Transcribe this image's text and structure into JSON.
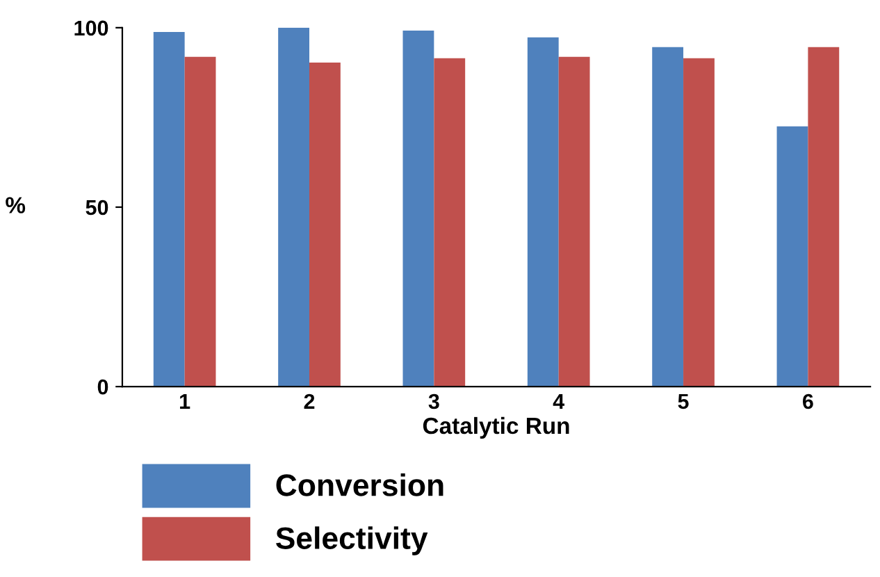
{
  "chart_data": {
    "type": "bar",
    "xlabel": "Catalytic Run",
    "ylabel": "%",
    "categories": [
      "1",
      "2",
      "3",
      "4",
      "5",
      "6"
    ],
    "series": [
      {
        "name": "Conversion",
        "color": "#4f81bd",
        "values": [
          98.8,
          100,
          99.2,
          97.3,
          94.6,
          72.5
        ]
      },
      {
        "name": "Selectivity",
        "color": "#c0504d",
        "values": [
          91.9,
          90.3,
          91.5,
          91.9,
          91.5,
          94.6
        ]
      }
    ],
    "ylim": [
      0,
      100
    ],
    "yticks": [
      0,
      50,
      100
    ],
    "grid": false,
    "legend": "bottom"
  }
}
